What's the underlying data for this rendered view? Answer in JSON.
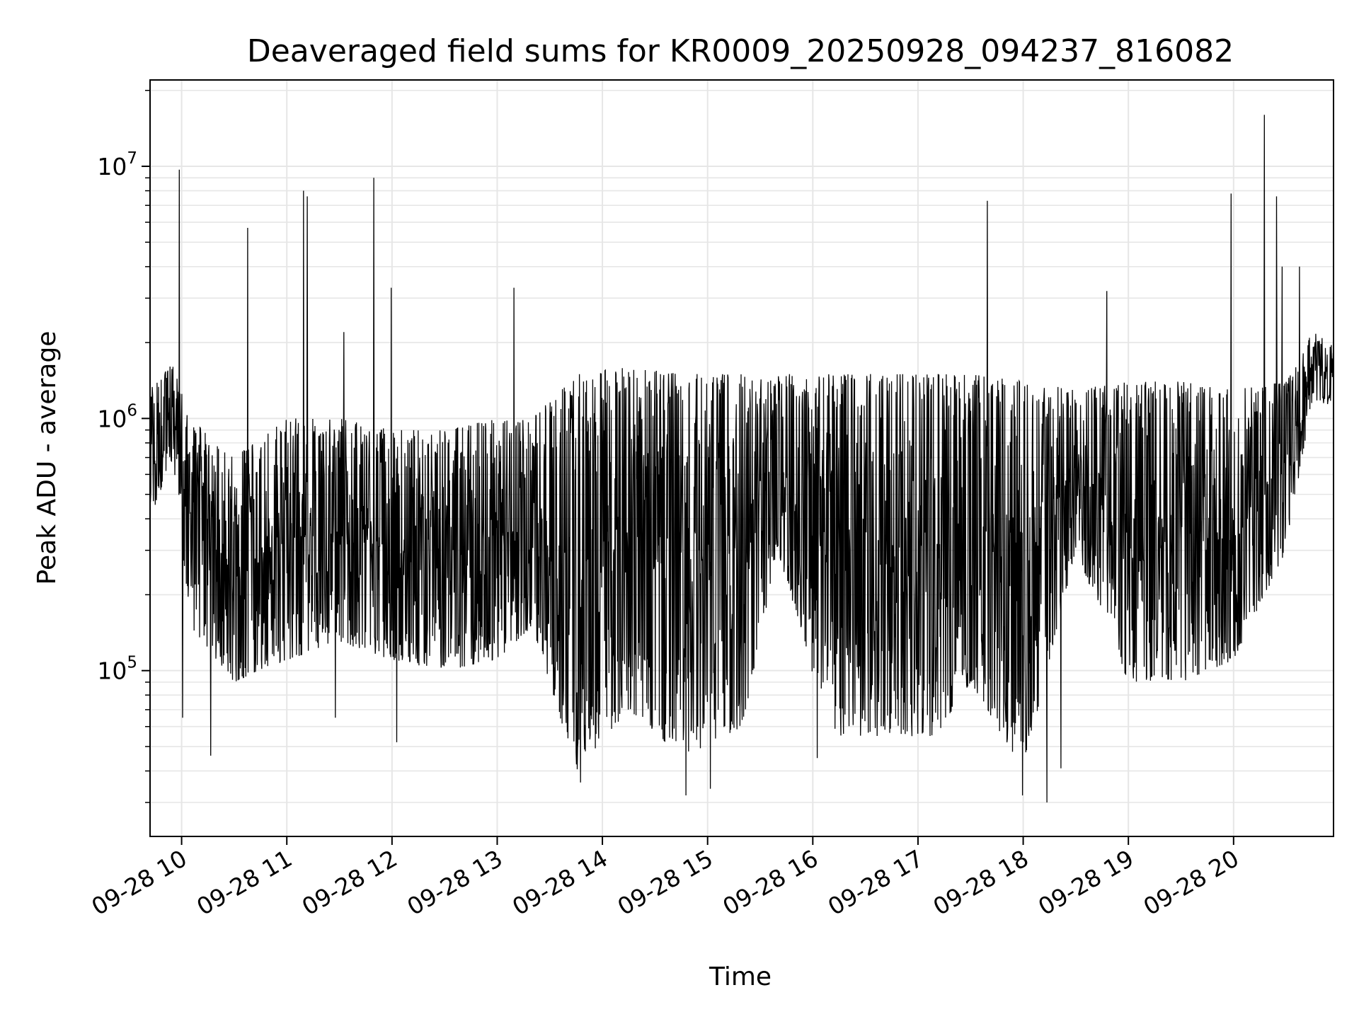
{
  "chart_data": {
    "type": "line",
    "title": "Deaveraged field sums for KR0009_20250928_094237_816082",
    "xlabel": "Time",
    "ylabel": "Peak ADU - average",
    "y_scale": "log",
    "ylim": [
      22000,
      22000000
    ],
    "xlim": [
      "2025-09-28 09:42",
      "2025-09-28 20:57"
    ],
    "grid": true,
    "line_color": "#000000",
    "grid_color": "#e6e6e6",
    "x_ticks": [
      {
        "value": "2025-09-28 10:00",
        "label": "09-28 10"
      },
      {
        "value": "2025-09-28 11:00",
        "label": "09-28 11"
      },
      {
        "value": "2025-09-28 12:00",
        "label": "09-28 12"
      },
      {
        "value": "2025-09-28 13:00",
        "label": "09-28 13"
      },
      {
        "value": "2025-09-28 14:00",
        "label": "09-28 14"
      },
      {
        "value": "2025-09-28 15:00",
        "label": "09-28 15"
      },
      {
        "value": "2025-09-28 16:00",
        "label": "09-28 16"
      },
      {
        "value": "2025-09-28 17:00",
        "label": "09-28 17"
      },
      {
        "value": "2025-09-28 18:00",
        "label": "09-28 18"
      },
      {
        "value": "2025-09-28 19:00",
        "label": "09-28 19"
      },
      {
        "value": "2025-09-28 20:00",
        "label": "09-28 20"
      }
    ],
    "y_ticks": [
      {
        "value": 100000,
        "base": "10",
        "exp": "5"
      },
      {
        "value": 1000000,
        "base": "10",
        "exp": "6"
      },
      {
        "value": 10000000,
        "base": "10",
        "exp": "7"
      }
    ],
    "envelope_profile": [
      {
        "time": "2025-09-28 09:42",
        "low": 400000,
        "high": 1300000
      },
      {
        "time": "2025-09-28 09:55",
        "low": 700000,
        "high": 1700000
      },
      {
        "time": "2025-09-28 10:05",
        "low": 150000,
        "high": 1000000
      },
      {
        "time": "2025-09-28 10:30",
        "low": 90000,
        "high": 700000
      },
      {
        "time": "2025-09-28 11:00",
        "low": 110000,
        "high": 1000000
      },
      {
        "time": "2025-09-28 11:30",
        "low": 130000,
        "high": 1000000
      },
      {
        "time": "2025-09-28 12:00",
        "low": 110000,
        "high": 900000
      },
      {
        "time": "2025-09-28 12:30",
        "low": 100000,
        "high": 900000
      },
      {
        "time": "2025-09-28 13:00",
        "low": 110000,
        "high": 1000000
      },
      {
        "time": "2025-09-28 13:20",
        "low": 150000,
        "high": 1000000
      },
      {
        "time": "2025-09-28 13:45",
        "low": 40000,
        "high": 1500000
      },
      {
        "time": "2025-09-28 14:15",
        "low": 70000,
        "high": 1600000
      },
      {
        "time": "2025-09-28 14:45",
        "low": 45000,
        "high": 1500000
      },
      {
        "time": "2025-09-28 15:20",
        "low": 60000,
        "high": 1500000
      },
      {
        "time": "2025-09-28 15:40",
        "low": 300000,
        "high": 1500000
      },
      {
        "time": "2025-09-28 16:10",
        "low": 55000,
        "high": 1500000
      },
      {
        "time": "2025-09-28 16:40",
        "low": 55000,
        "high": 1500000
      },
      {
        "time": "2025-09-28 17:10",
        "low": 55000,
        "high": 1500000
      },
      {
        "time": "2025-09-28 17:30",
        "low": 90000,
        "high": 1500000
      },
      {
        "time": "2025-09-28 18:00",
        "low": 40000,
        "high": 1400000
      },
      {
        "time": "2025-09-28 18:30",
        "low": 300000,
        "high": 1300000
      },
      {
        "time": "2025-09-28 19:00",
        "low": 90000,
        "high": 1400000
      },
      {
        "time": "2025-09-28 19:30",
        "low": 90000,
        "high": 1400000
      },
      {
        "time": "2025-09-28 20:00",
        "low": 110000,
        "high": 1300000
      },
      {
        "time": "2025-09-28 20:30",
        "low": 300000,
        "high": 1400000
      },
      {
        "time": "2025-09-28 20:45",
        "low": 1200000,
        "high": 2200000
      },
      {
        "time": "2025-09-28 20:57",
        "low": 1100000,
        "high": 2000000
      }
    ],
    "spikes": [
      {
        "time": "2025-09-28 09:59",
        "value": 9700000
      },
      {
        "time": "2025-09-28 10:38",
        "value": 5700000
      },
      {
        "time": "2025-09-28 11:10",
        "value": 8000000
      },
      {
        "time": "2025-09-28 11:12",
        "value": 7600000
      },
      {
        "time": "2025-09-28 11:33",
        "value": 2200000
      },
      {
        "time": "2025-09-28 11:50",
        "value": 9000000
      },
      {
        "time": "2025-09-28 12:00",
        "value": 3300000
      },
      {
        "time": "2025-09-28 13:10",
        "value": 3300000
      },
      {
        "time": "2025-09-28 17:40",
        "value": 7300000
      },
      {
        "time": "2025-09-28 18:48",
        "value": 3200000
      },
      {
        "time": "2025-09-28 19:59",
        "value": 7800000
      },
      {
        "time": "2025-09-28 20:18",
        "value": 16000000
      },
      {
        "time": "2025-09-28 20:25",
        "value": 7600000
      },
      {
        "time": "2025-09-28 20:28",
        "value": 4000000
      },
      {
        "time": "2025-09-28 20:38",
        "value": 4000000
      }
    ],
    "dips": [
      {
        "time": "2025-09-28 10:01",
        "value": 65000
      },
      {
        "time": "2025-09-28 10:17",
        "value": 46000
      },
      {
        "time": "2025-09-28 11:28",
        "value": 65000
      },
      {
        "time": "2025-09-28 12:03",
        "value": 52000
      },
      {
        "time": "2025-09-28 13:48",
        "value": 36000
      },
      {
        "time": "2025-09-28 14:48",
        "value": 32000
      },
      {
        "time": "2025-09-28 15:02",
        "value": 34000
      },
      {
        "time": "2025-09-28 16:03",
        "value": 45000
      },
      {
        "time": "2025-09-28 18:00",
        "value": 32000
      },
      {
        "time": "2025-09-28 18:14",
        "value": 30000
      },
      {
        "time": "2025-09-28 18:22",
        "value": 41000
      }
    ]
  }
}
